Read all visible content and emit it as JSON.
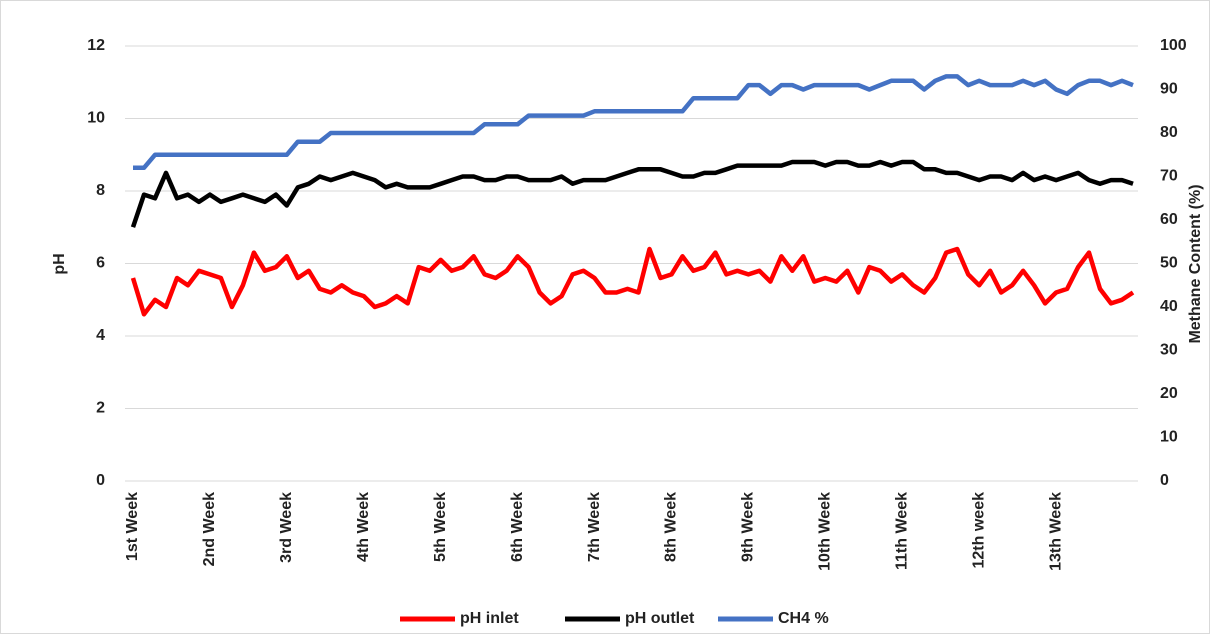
{
  "chart_data": {
    "type": "line",
    "categories": [
      "1st Week",
      null,
      null,
      null,
      null,
      null,
      null,
      "2nd Week",
      null,
      null,
      null,
      null,
      null,
      null,
      "3rd Week",
      null,
      null,
      null,
      null,
      null,
      null,
      "4th Week",
      null,
      null,
      null,
      null,
      null,
      null,
      "5th Week",
      null,
      null,
      null,
      null,
      null,
      null,
      "6th Week",
      null,
      null,
      null,
      null,
      null,
      null,
      "7th Week",
      null,
      null,
      null,
      null,
      null,
      null,
      "8th Week",
      null,
      null,
      null,
      null,
      null,
      null,
      "9th Week",
      null,
      null,
      null,
      null,
      null,
      null,
      "10th Week",
      null,
      null,
      null,
      null,
      null,
      null,
      "11th Week",
      null,
      null,
      null,
      null,
      null,
      null,
      "12th week",
      null,
      null,
      null,
      null,
      null,
      null,
      "13th Week",
      null,
      null,
      null,
      null,
      null,
      null,
      null
    ],
    "ylabel": "pH",
    "y2label": "Methane Content (%)",
    "ylim": [
      0,
      12
    ],
    "yticks": [
      0,
      2,
      4,
      6,
      8,
      10,
      12
    ],
    "y2lim": [
      0,
      100
    ],
    "y2ticks": [
      0,
      10,
      20,
      30,
      40,
      50,
      60,
      70,
      80,
      90,
      100
    ],
    "grid": true,
    "legend": "bottom",
    "series": [
      {
        "name": "pH inlet",
        "color": "#ff0000",
        "values": [
          5.6,
          4.6,
          5.0,
          4.8,
          5.6,
          5.4,
          5.8,
          5.7,
          5.6,
          4.8,
          5.4,
          6.3,
          5.8,
          5.9,
          6.2,
          5.6,
          5.8,
          5.3,
          5.2,
          5.4,
          5.2,
          5.1,
          4.8,
          4.9,
          5.1,
          4.9,
          5.9,
          5.8,
          6.1,
          5.8,
          5.9,
          6.2,
          5.7,
          5.6,
          5.8,
          6.2,
          5.9,
          5.2,
          4.9,
          5.1,
          5.7,
          5.8,
          5.6,
          5.2,
          5.2,
          5.3,
          5.2,
          6.4,
          5.6,
          5.7,
          6.2,
          5.8,
          5.9,
          6.3,
          5.7,
          5.8,
          5.7,
          5.8,
          5.5,
          6.2,
          5.8,
          6.2,
          5.5,
          5.6,
          5.5,
          5.8,
          5.2,
          5.9,
          5.8,
          5.5,
          5.7,
          5.4,
          5.2,
          5.6,
          6.3,
          6.4,
          5.7,
          5.4,
          5.8,
          5.2,
          5.4,
          5.8,
          5.4,
          4.9,
          5.2,
          5.3,
          5.9,
          6.3,
          5.3,
          4.9,
          5.0,
          5.2
        ]
      },
      {
        "name": "pH outlet",
        "color": "#000000",
        "values": [
          7.0,
          7.9,
          7.8,
          8.5,
          7.8,
          7.9,
          7.7,
          7.9,
          7.7,
          7.8,
          7.9,
          7.8,
          7.7,
          7.9,
          7.6,
          8.1,
          8.2,
          8.4,
          8.3,
          8.4,
          8.5,
          8.4,
          8.3,
          8.1,
          8.2,
          8.1,
          8.1,
          8.1,
          8.2,
          8.3,
          8.4,
          8.4,
          8.3,
          8.3,
          8.4,
          8.4,
          8.3,
          8.3,
          8.3,
          8.4,
          8.2,
          8.3,
          8.3,
          8.3,
          8.4,
          8.5,
          8.6,
          8.6,
          8.6,
          8.5,
          8.4,
          8.4,
          8.5,
          8.5,
          8.6,
          8.7,
          8.7,
          8.7,
          8.7,
          8.7,
          8.8,
          8.8,
          8.8,
          8.7,
          8.8,
          8.8,
          8.7,
          8.7,
          8.8,
          8.7,
          8.8,
          8.8,
          8.6,
          8.6,
          8.5,
          8.5,
          8.4,
          8.3,
          8.4,
          8.4,
          8.3,
          8.5,
          8.3,
          8.4,
          8.3,
          8.4,
          8.5,
          8.3,
          8.2,
          8.3,
          8.3,
          8.2
        ]
      },
      {
        "name": "CH4 %",
        "color": "#4472c4",
        "axis": "y2",
        "values": [
          72,
          72,
          75,
          75,
          75,
          75,
          75,
          75,
          75,
          75,
          75,
          75,
          75,
          75,
          75,
          78,
          78,
          78,
          80,
          80,
          80,
          80,
          80,
          80,
          80,
          80,
          80,
          80,
          80,
          80,
          80,
          80,
          82,
          82,
          82,
          82,
          84,
          84,
          84,
          84,
          84,
          84,
          85,
          85,
          85,
          85,
          85,
          85,
          85,
          85,
          85,
          88,
          88,
          88,
          88,
          88,
          91,
          91,
          89,
          91,
          91,
          90,
          91,
          91,
          91,
          91,
          91,
          90,
          91,
          92,
          92,
          92,
          90,
          92,
          93,
          93,
          91,
          92,
          91,
          91,
          91,
          92,
          91,
          92,
          90,
          89,
          91,
          92,
          92,
          91,
          92,
          91
        ]
      }
    ]
  }
}
